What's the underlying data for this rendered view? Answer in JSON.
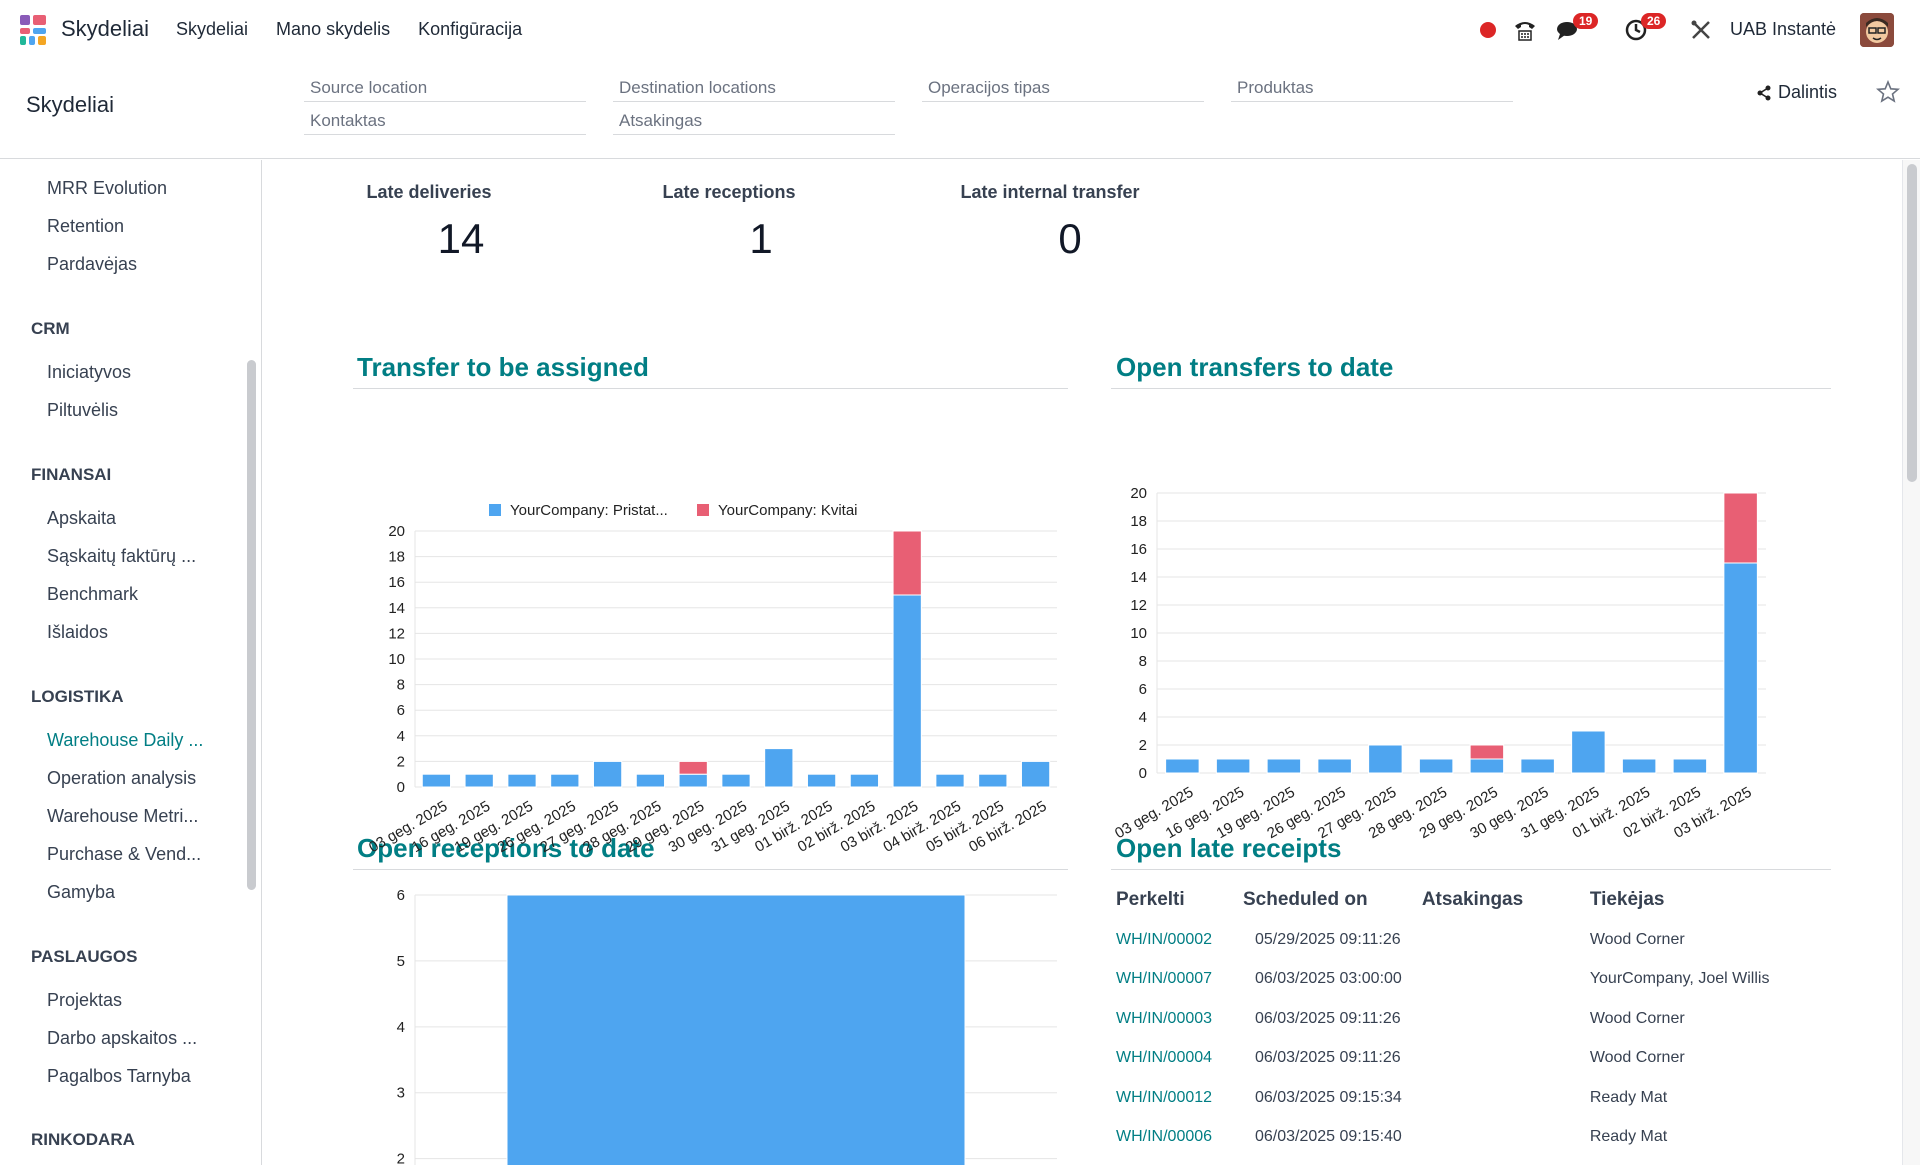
{
  "app": {
    "name": "Skydeliai"
  },
  "topnav": [
    "Skydeliai",
    "Mano skydelis",
    "Konfigūracija"
  ],
  "systray": {
    "messages_badge": "19",
    "activities_badge": "26",
    "company": "UAB Instantė"
  },
  "control": {
    "title": "Skydeliai",
    "filters": [
      "Source location",
      "Destination locations",
      "Operacijos tipas",
      "Produktas",
      "Kontaktas",
      "Atsakingas"
    ],
    "share_label": "Dalintis"
  },
  "sidebar": {
    "groups": [
      {
        "heading": "",
        "items": [
          "MRR Evolution",
          "Retention",
          "Pardavėjas"
        ]
      },
      {
        "heading": "CRM",
        "items": [
          "Iniciatyvos",
          "Piltuvėlis"
        ]
      },
      {
        "heading": "FINANSAI",
        "items": [
          "Apskaita",
          "Sąskaitų faktūrų ...",
          "Benchmark",
          "Išlaidos"
        ]
      },
      {
        "heading": "LOGISTIKA",
        "items": [
          "Warehouse Daily ...",
          "Operation analysis",
          "Warehouse Metri...",
          "Purchase & Vend...",
          "Gamyba"
        ]
      },
      {
        "heading": "PASLAUGOS",
        "items": [
          "Projektas",
          "Darbo apskaitos ...",
          "Pagalbos Tarnyba"
        ]
      },
      {
        "heading": "RINKODARA",
        "items": []
      }
    ],
    "active": "Warehouse Daily ..."
  },
  "kpis": [
    {
      "label": "Late deliveries",
      "value": "14"
    },
    {
      "label": "Late receptions",
      "value": "1"
    },
    {
      "label": "Late internal transfer",
      "value": "0"
    }
  ],
  "sections": {
    "transfer_to_assign": "Transfer to be assigned",
    "open_transfers": "Open transfers to date",
    "open_receptions": "Open receptions to date",
    "open_late_receipts": "Open late receipts"
  },
  "colors": {
    "blue": "#4ea5f0",
    "red": "#e85f74",
    "accent": "#017e84"
  },
  "chart_data": [
    {
      "type": "bar",
      "title": "Transfer to be assigned",
      "stacked": true,
      "legend": "top",
      "categories": [
        "03 geg. 2025",
        "16 geg. 2025",
        "19 geg. 2025",
        "26 geg. 2025",
        "27 geg. 2025",
        "28 geg. 2025",
        "29 geg. 2025",
        "30 geg. 2025",
        "31 geg. 2025",
        "01 birž. 2025",
        "02 birž. 2025",
        "03 birž. 2025",
        "04 birž. 2025",
        "05 birž. 2025",
        "06 birž. 2025"
      ],
      "series": [
        {
          "name": "YourCompany: Pristat...",
          "values": [
            1,
            1,
            1,
            1,
            2,
            1,
            1,
            1,
            3,
            1,
            1,
            15,
            1,
            1,
            2
          ]
        },
        {
          "name": "YourCompany: Kvitai",
          "values": [
            0,
            0,
            0,
            0,
            0,
            0,
            1,
            0,
            0,
            0,
            0,
            5,
            0,
            0,
            0
          ]
        }
      ],
      "yticks": [
        0,
        2,
        4,
        6,
        8,
        10,
        12,
        14,
        16,
        18,
        20
      ],
      "ylim": [
        0,
        20
      ],
      "grid": true
    },
    {
      "type": "bar",
      "title": "Open transfers to date",
      "stacked": true,
      "categories": [
        "03 geg. 2025",
        "16 geg. 2025",
        "19 geg. 2025",
        "26 geg. 2025",
        "27 geg. 2025",
        "28 geg. 2025",
        "29 geg. 2025",
        "30 geg. 2025",
        "31 geg. 2025",
        "01 birž. 2025",
        "02 birž. 2025",
        "03 birž. 2025"
      ],
      "series": [
        {
          "name": "",
          "values": [
            1,
            1,
            1,
            1,
            2,
            1,
            1,
            1,
            3,
            1,
            1,
            15
          ]
        },
        {
          "name": "",
          "values": [
            0,
            0,
            0,
            0,
            0,
            0,
            1,
            0,
            0,
            0,
            0,
            5
          ]
        }
      ],
      "yticks": [
        0,
        2,
        4,
        6,
        8,
        10,
        12,
        14,
        16,
        18,
        20
      ],
      "ylim": [
        0,
        20
      ],
      "grid": true
    },
    {
      "type": "bar",
      "title": "Open receptions to date",
      "categories": [
        ""
      ],
      "series": [
        {
          "name": "",
          "values": [
            6
          ]
        }
      ],
      "yticks": [
        2,
        3,
        4,
        5,
        6
      ],
      "ylim": [
        1.6,
        6
      ],
      "grid": true
    }
  ],
  "late_receipts": {
    "columns": [
      "Perkelti",
      "Scheduled on",
      "Atsakingas",
      "Tiekėjas"
    ],
    "rows": [
      {
        "ref": "WH/IN/00002",
        "date": "05/29/2025 09:11:26",
        "resp": "",
        "vendor": "Wood Corner"
      },
      {
        "ref": "WH/IN/00007",
        "date": "06/03/2025 03:00:00",
        "resp": "",
        "vendor": "YourCompany, Joel Willis"
      },
      {
        "ref": "WH/IN/00003",
        "date": "06/03/2025 09:11:26",
        "resp": "",
        "vendor": "Wood Corner"
      },
      {
        "ref": "WH/IN/00004",
        "date": "06/03/2025 09:11:26",
        "resp": "",
        "vendor": "Wood Corner"
      },
      {
        "ref": "WH/IN/00012",
        "date": "06/03/2025 09:15:34",
        "resp": "",
        "vendor": "Ready Mat"
      },
      {
        "ref": "WH/IN/00006",
        "date": "06/03/2025 09:15:40",
        "resp": "",
        "vendor": "Ready Mat"
      }
    ]
  }
}
